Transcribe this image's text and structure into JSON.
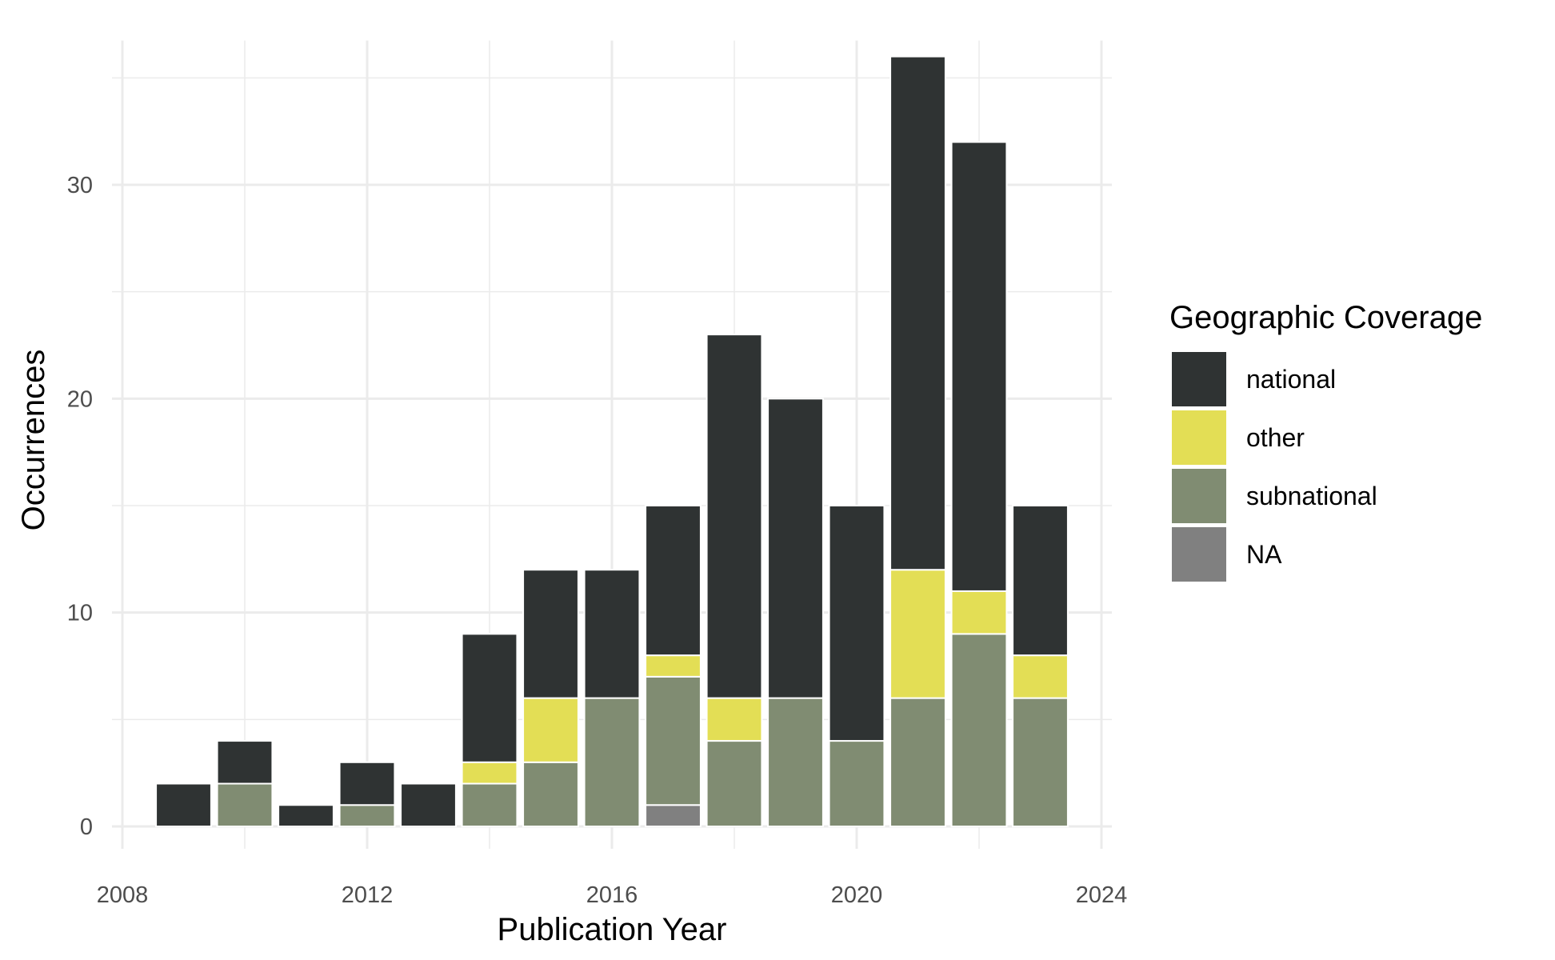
{
  "chart_data": {
    "type": "bar",
    "stacked": true,
    "title": "",
    "xlabel": "Publication Year",
    "ylabel": "Occurrences",
    "xlim": [
      2008,
      2024
    ],
    "ylim": [
      0,
      36
    ],
    "x_ticks": [
      2008,
      2012,
      2016,
      2020,
      2024
    ],
    "y_ticks": [
      0,
      10,
      20,
      30
    ],
    "grid": true,
    "legend": {
      "title": "Geographic Coverage",
      "position": "right",
      "order": [
        "national",
        "other",
        "subnational",
        "NA"
      ]
    },
    "categories": [
      2009,
      2010,
      2011,
      2012,
      2013,
      2014,
      2015,
      2016,
      2017,
      2018,
      2019,
      2020,
      2021,
      2022,
      2023
    ],
    "series": [
      {
        "name": "NA",
        "color": "#808080",
        "values": [
          0,
          0,
          0,
          0,
          0,
          0,
          0,
          0,
          1,
          0,
          0,
          0,
          0,
          0,
          0
        ]
      },
      {
        "name": "subnational",
        "color": "#808c72",
        "values": [
          0,
          2,
          0,
          1,
          0,
          2,
          3,
          6,
          6,
          4,
          6,
          4,
          6,
          9,
          6
        ]
      },
      {
        "name": "other",
        "color": "#e3de55",
        "values": [
          0,
          0,
          0,
          0,
          0,
          1,
          3,
          0,
          1,
          2,
          0,
          0,
          6,
          2,
          2
        ]
      },
      {
        "name": "national",
        "color": "#2f3333",
        "values": [
          2,
          2,
          1,
          2,
          2,
          6,
          6,
          6,
          7,
          17,
          14,
          11,
          24,
          21,
          7
        ]
      }
    ]
  }
}
